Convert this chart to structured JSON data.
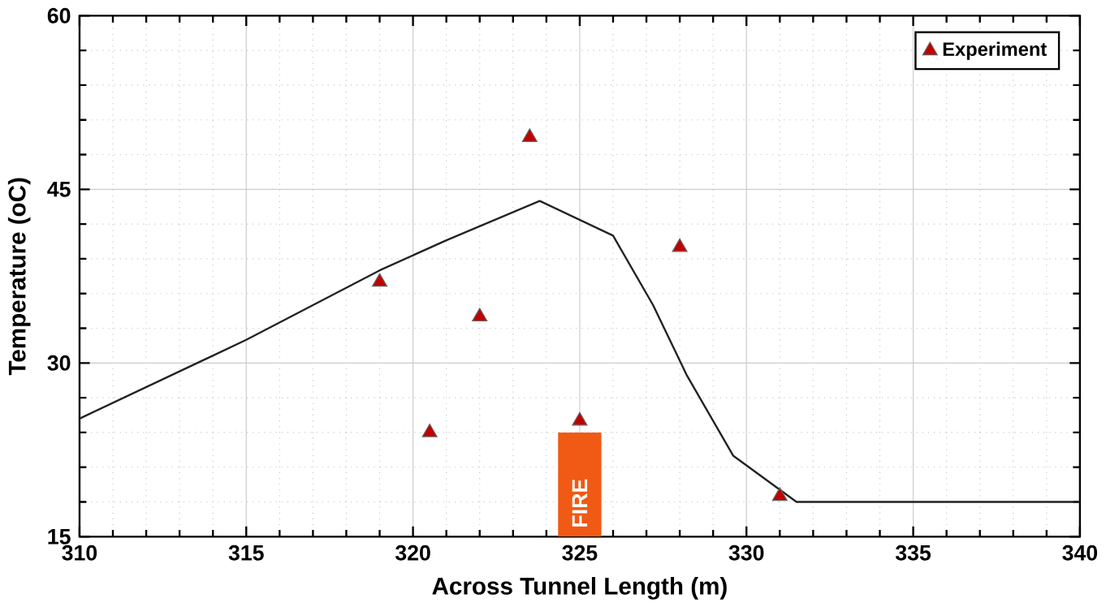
{
  "chart_data": {
    "type": "line",
    "xlabel": "Across Tunnel Length (m)",
    "ylabel": "Temperature (oC)",
    "xlim": [
      310,
      340
    ],
    "ylim": [
      15,
      60
    ],
    "xticks": [
      310,
      315,
      320,
      325,
      330,
      335,
      340
    ],
    "yticks": [
      15,
      30,
      45,
      60
    ],
    "grid": true,
    "legend": "top right",
    "annotations": [
      "FIRE"
    ],
    "series": [
      {
        "color": "#222222",
        "marker": "none",
        "x": [
          310,
          315,
          319,
          321,
          323.8,
          326,
          327.2,
          328.2,
          329.6,
          331.5,
          340
        ],
        "values": [
          25.2,
          32,
          38,
          40.6,
          44,
          41,
          35,
          29,
          22,
          18,
          18
        ]
      },
      {
        "type": "bar",
        "color": "#f05a14",
        "x": [
          325
        ],
        "values": [
          24
        ]
      },
      {
        "type": "scatter",
        "name": "Experiment",
        "color": "#c00000",
        "marker": "triangle",
        "x": [
          319,
          320.5,
          322,
          323.5,
          325,
          328,
          331
        ],
        "values": [
          37,
          24,
          34,
          49.5,
          25,
          40,
          18.5
        ]
      }
    ]
  }
}
